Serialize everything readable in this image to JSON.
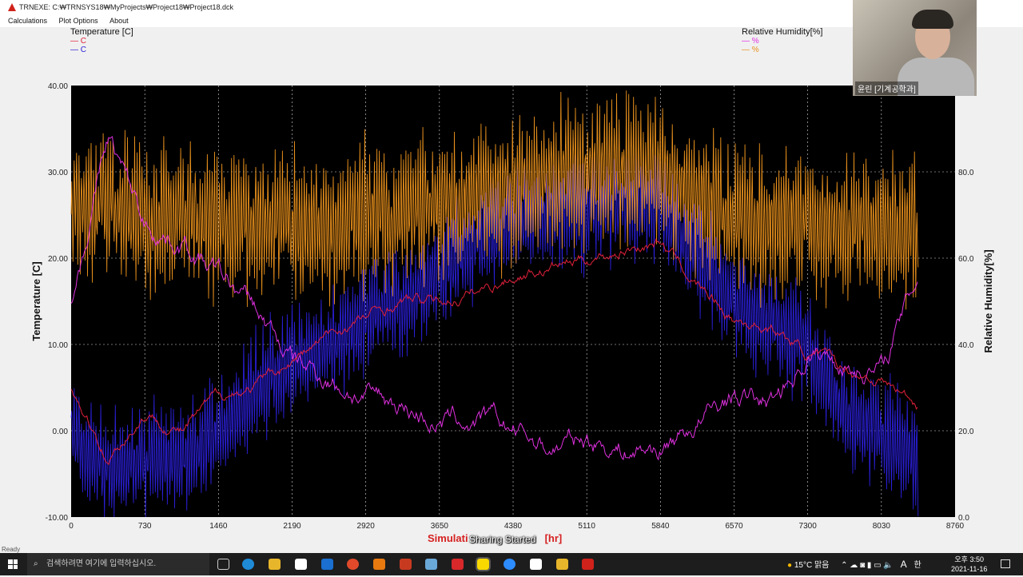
{
  "window": {
    "title": "TRNEXE: C:₩TRNSYS18₩MyProjects₩Project18₩Project18.dck"
  },
  "menu": [
    "Calculations",
    "Plot Options",
    "About"
  ],
  "legend_left": {
    "title": "Temperature [C]",
    "items": [
      {
        "label": "C",
        "color": "#e0203a"
      },
      {
        "label": "C",
        "color": "#2a1fd6"
      }
    ]
  },
  "legend_right": {
    "title": "Relative Humidity[%]",
    "items": [
      {
        "label": "%",
        "color": "#e030e0"
      },
      {
        "label": "%",
        "color": "#e8901c"
      }
    ]
  },
  "chart_data": {
    "type": "line",
    "xlabel_visible_start": "Simulati",
    "xlabel_visible_end": "[hr]",
    "ylabel_left": "Temperature [C]",
    "ylabel_right": "Relative Humidity[%]",
    "xlim": [
      0,
      8760
    ],
    "ylim_left": [
      -10,
      40
    ],
    "ylim_right": [
      0,
      100
    ],
    "x_ticks": [
      "0",
      "730",
      "1460",
      "2190",
      "2920",
      "3650",
      "4380",
      "5110",
      "5840",
      "6570",
      "7300",
      "8030",
      "8760"
    ],
    "y_ticks_left": [
      "-10.00",
      "0.00",
      "10.00",
      "20.00",
      "30.00",
      "40.00"
    ],
    "y_ticks_right": [
      "0.0",
      "20.0",
      "40.0",
      "60.0",
      "80.0"
    ],
    "grid": true,
    "background": "#000000",
    "x_samples": [
      0,
      365,
      730,
      1095,
      1460,
      1825,
      2190,
      2555,
      2920,
      3285,
      3650,
      4015,
      4380,
      4745,
      5110,
      5475,
      5840,
      6205,
      6570,
      6935,
      7300,
      7665,
      8030,
      8395
    ],
    "series": [
      {
        "axis": "left",
        "color": "#2a1fd6",
        "amplitude": 6,
        "values": [
          0,
          -5,
          -3,
          -3,
          0,
          5,
          8,
          10,
          13,
          15,
          18,
          22,
          24,
          25,
          25,
          26,
          26,
          20,
          15,
          12,
          10,
          2,
          0,
          -3
        ]
      },
      {
        "axis": "right",
        "color": "#e8901c",
        "amplitude": 16,
        "values": [
          72,
          72,
          70,
          70,
          68,
          68,
          68,
          66,
          70,
          70,
          72,
          74,
          76,
          78,
          80,
          80,
          80,
          74,
          70,
          68,
          68,
          66,
          68,
          66
        ]
      },
      {
        "axis": "left",
        "color": "#e030e0",
        "amplitude": 1.5,
        "values": [
          15,
          34,
          24,
          22,
          18,
          14,
          8,
          6,
          4,
          3,
          1,
          1,
          0,
          -2,
          -1,
          -2,
          -2,
          1,
          4,
          3,
          9,
          8,
          7,
          18
        ]
      },
      {
        "axis": "left",
        "color": "#e0203a",
        "amplitude": 0.8,
        "values": [
          5,
          -3,
          2,
          0,
          4,
          5,
          8,
          11,
          13,
          15,
          15,
          16,
          18,
          19,
          20,
          21,
          22,
          17,
          13,
          12,
          9,
          7,
          6,
          3
        ]
      }
    ]
  },
  "overlay": {
    "sharing": "Sharing Started"
  },
  "status": "Ready",
  "webcam": {
    "name": "윤린 [기계공학과]"
  },
  "taskbar": {
    "search_placeholder": "검색하려면 여기에 입력하십시오.",
    "weather": "15°C 맑음",
    "ime": "A",
    "lang": "한",
    "time": "오후 3:50",
    "date": "2021-11-16"
  }
}
